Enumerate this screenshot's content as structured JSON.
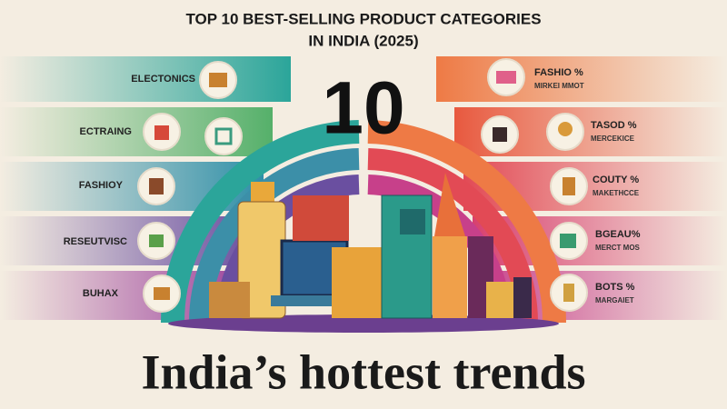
{
  "header": {
    "title_lines": [
      "TOP 10 BEST-SELLING PRODUCT CATEGORIES",
      "IN INDIA (2025)"
    ],
    "number": "10"
  },
  "left_categories": [
    {
      "label": "ELECTONICS"
    },
    {
      "label": "ECTRAING"
    },
    {
      "label": "FASHIOY"
    },
    {
      "label": "RESEUTVISC"
    },
    {
      "label": "BUHAX"
    }
  ],
  "right_categories": [
    {
      "label": "FASHIO %",
      "sublabel": "MIRKEI MMOT"
    },
    {
      "label": "TASOD %",
      "sublabel": "MERCEKICE"
    },
    {
      "label": "COUTY %",
      "sublabel": "MAKETHCCE"
    },
    {
      "label": "BGEAU%",
      "sublabel": "MERCT MOS"
    },
    {
      "label": "BOTS %",
      "sublabel": "MARGAIET"
    }
  ],
  "footer": {
    "tagline": "India’s hottest trends"
  }
}
